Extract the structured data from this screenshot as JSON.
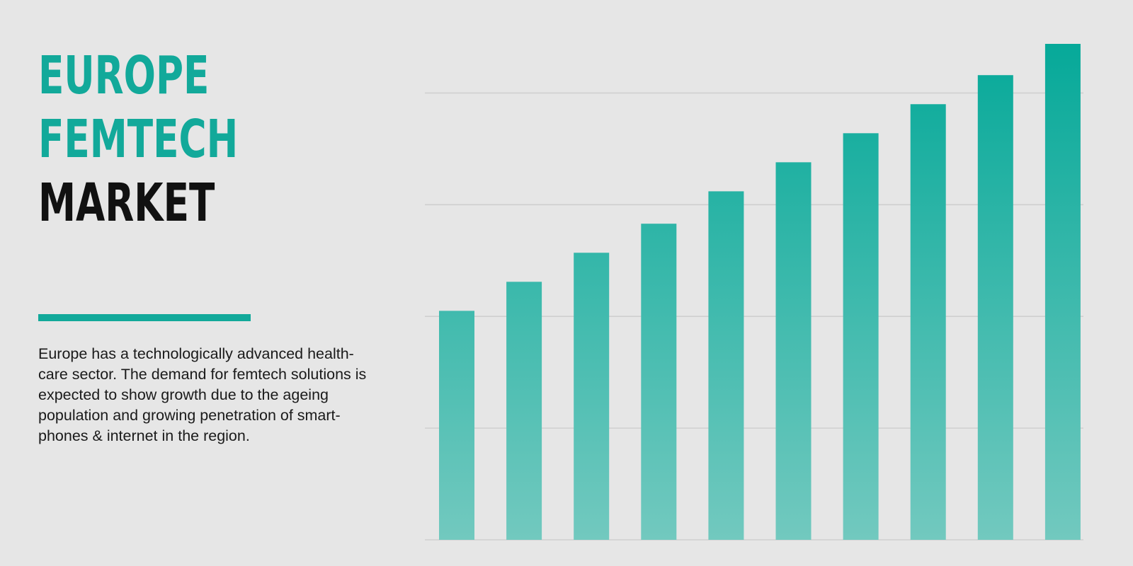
{
  "title": {
    "lines": [
      "EUROPE",
      "FEMTECH",
      "MARKET"
    ],
    "colors": [
      "#12a99a",
      "#12a99a",
      "#111111"
    ]
  },
  "accent_color": "#12a99a",
  "description": {
    "lines": [
      "Europe has a technologically advanced health-",
      "care sector. The demand for femtech solutions is",
      "expected to show growth due to the ageing",
      "population and growing penetration of smart-",
      "phones & internet in the region."
    ]
  },
  "chart_data": {
    "type": "bar",
    "title": "",
    "xlabel": "",
    "ylabel": "",
    "categories": [
      "",
      "",
      "",
      "",
      "",
      "",
      "",
      "",
      "",
      ""
    ],
    "values": [
      2.05,
      2.31,
      2.57,
      2.83,
      3.12,
      3.38,
      3.64,
      3.9,
      4.16,
      4.44
    ],
    "ylim": [
      0,
      4.44
    ],
    "gridlines": [
      0,
      1,
      2,
      3,
      4
    ],
    "grid": true,
    "bar_color_top": "#06a999",
    "bar_color_bottom": "#72c9bf",
    "grid_color": "#cfcfcf"
  }
}
